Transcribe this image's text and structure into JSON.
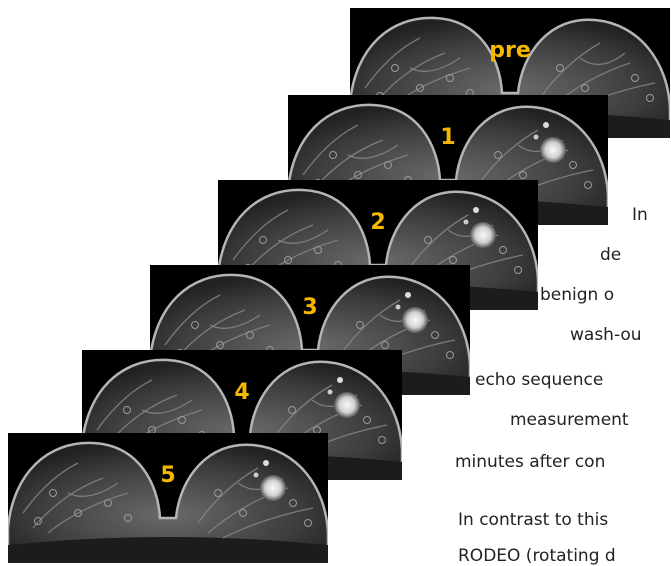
{
  "stack": {
    "frames": [
      {
        "label": "pre"
      },
      {
        "label": "1"
      },
      {
        "label": "2"
      },
      {
        "label": "3"
      },
      {
        "label": "4"
      },
      {
        "label": "5"
      }
    ],
    "label_color": "#f5b800"
  },
  "text": {
    "line1": "In",
    "line2": "de",
    "line3": "benign o",
    "line4": "wash-ou",
    "line5": "echo sequence",
    "line6": "measurement",
    "line7": "minutes after con",
    "line8": "In contrast to this",
    "line9": "RODEO (rotating d"
  }
}
